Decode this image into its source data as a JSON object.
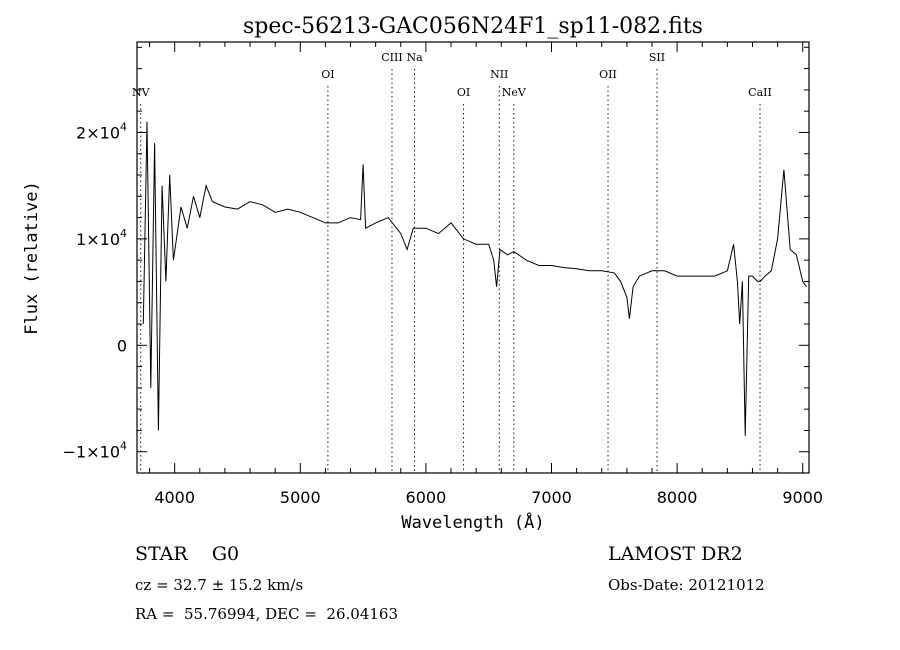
{
  "chart_data": {
    "type": "line",
    "title": "spec-56213-GAC056N24F1_sp11-082.fits",
    "xlabel": "Wavelength (Å)",
    "ylabel": "Flux (relative)",
    "xlim": [
      3700,
      9050
    ],
    "ylim": [
      -12000,
      28500
    ],
    "x_ticks": [
      {
        "value": 4000,
        "label": "4000"
      },
      {
        "value": 5000,
        "label": "5000"
      },
      {
        "value": 6000,
        "label": "6000"
      },
      {
        "value": 7000,
        "label": "7000"
      },
      {
        "value": 8000,
        "label": "8000"
      },
      {
        "value": 9000,
        "label": "9000"
      }
    ],
    "y_ticks": [
      {
        "value": -10000,
        "label": "−1×10",
        "exp": "4"
      },
      {
        "value": 0,
        "label": "0",
        "exp": ""
      },
      {
        "value": 10000,
        "label": "1×10",
        "exp": "4"
      },
      {
        "value": 20000,
        "label": "2×10",
        "exp": "4"
      }
    ],
    "lines": [
      {
        "name": "NV",
        "wavelength": 3730,
        "label_level": 0
      },
      {
        "name": "OI",
        "wavelength": 5220,
        "label_level": 1
      },
      {
        "name": "CIII",
        "wavelength": 5730,
        "label_level": 2
      },
      {
        "name": "Na",
        "wavelength": 5910,
        "label_level": 2
      },
      {
        "name": "OI",
        "wavelength": 6300,
        "label_level": 0
      },
      {
        "name": "NII",
        "wavelength": 6584,
        "label_level": 1
      },
      {
        "name": "NeV",
        "wavelength": 6700,
        "label_level": 0
      },
      {
        "name": "OII",
        "wavelength": 7450,
        "label_level": 1
      },
      {
        "name": "SII",
        "wavelength": 7840,
        "label_level": 2
      },
      {
        "name": "CaII",
        "wavelength": 8660,
        "label_level": 0
      }
    ],
    "series": [
      {
        "x": [
          3750,
          3780,
          3810,
          3840,
          3870,
          3900,
          3930,
          3960,
          3990,
          4050,
          4100,
          4150,
          4200,
          4250,
          4300,
          4400,
          4500,
          4600,
          4700,
          4800,
          4900,
          5000,
          5100,
          5200,
          5300,
          5400,
          5480,
          5500,
          5520,
          5600,
          5700,
          5800,
          5850,
          5900,
          6000,
          6100,
          6200,
          6300,
          6400,
          6500,
          6540,
          6563,
          6590,
          6650,
          6700,
          6800,
          6900,
          7000,
          7100,
          7200,
          7300,
          7400,
          7500,
          7550,
          7600,
          7620,
          7650,
          7700,
          7800,
          7900,
          8000,
          8100,
          8200,
          8300,
          8400,
          8450,
          8480,
          8498,
          8520,
          8542,
          8570,
          8600,
          8640,
          8662,
          8700,
          8750,
          8800,
          8850,
          8900,
          8950,
          9000,
          9030
        ],
        "y": [
          2000,
          21000,
          -4000,
          19000,
          -8000,
          15000,
          6000,
          16000,
          8000,
          13000,
          11000,
          14000,
          12000,
          15000,
          13500,
          13000,
          12800,
          13500,
          13200,
          12500,
          12800,
          12500,
          12000,
          11500,
          11500,
          12000,
          11800,
          17000,
          11000,
          11500,
          12000,
          10500,
          9000,
          11000,
          11000,
          10500,
          11500,
          10000,
          9500,
          9500,
          8000,
          5500,
          9000,
          8500,
          8800,
          8000,
          7500,
          7500,
          7300,
          7200,
          7000,
          7000,
          6800,
          6000,
          4500,
          2500,
          5500,
          6500,
          7000,
          7000,
          6500,
          6500,
          6500,
          6500,
          7000,
          9500,
          6000,
          2000,
          6000,
          -8500,
          6500,
          6500,
          6000,
          6000,
          6500,
          7000,
          10000,
          16500,
          9000,
          8500,
          6000,
          5500
        ]
      }
    ]
  },
  "footer": {
    "classification": "STAR    G0",
    "cz": "cz = 32.7 ± 15.2 km/s",
    "radec": "RA =  55.76994, DEC =  26.04163",
    "survey": "LAMOST DR2",
    "obs_date": "Obs-Date: 20121012"
  }
}
